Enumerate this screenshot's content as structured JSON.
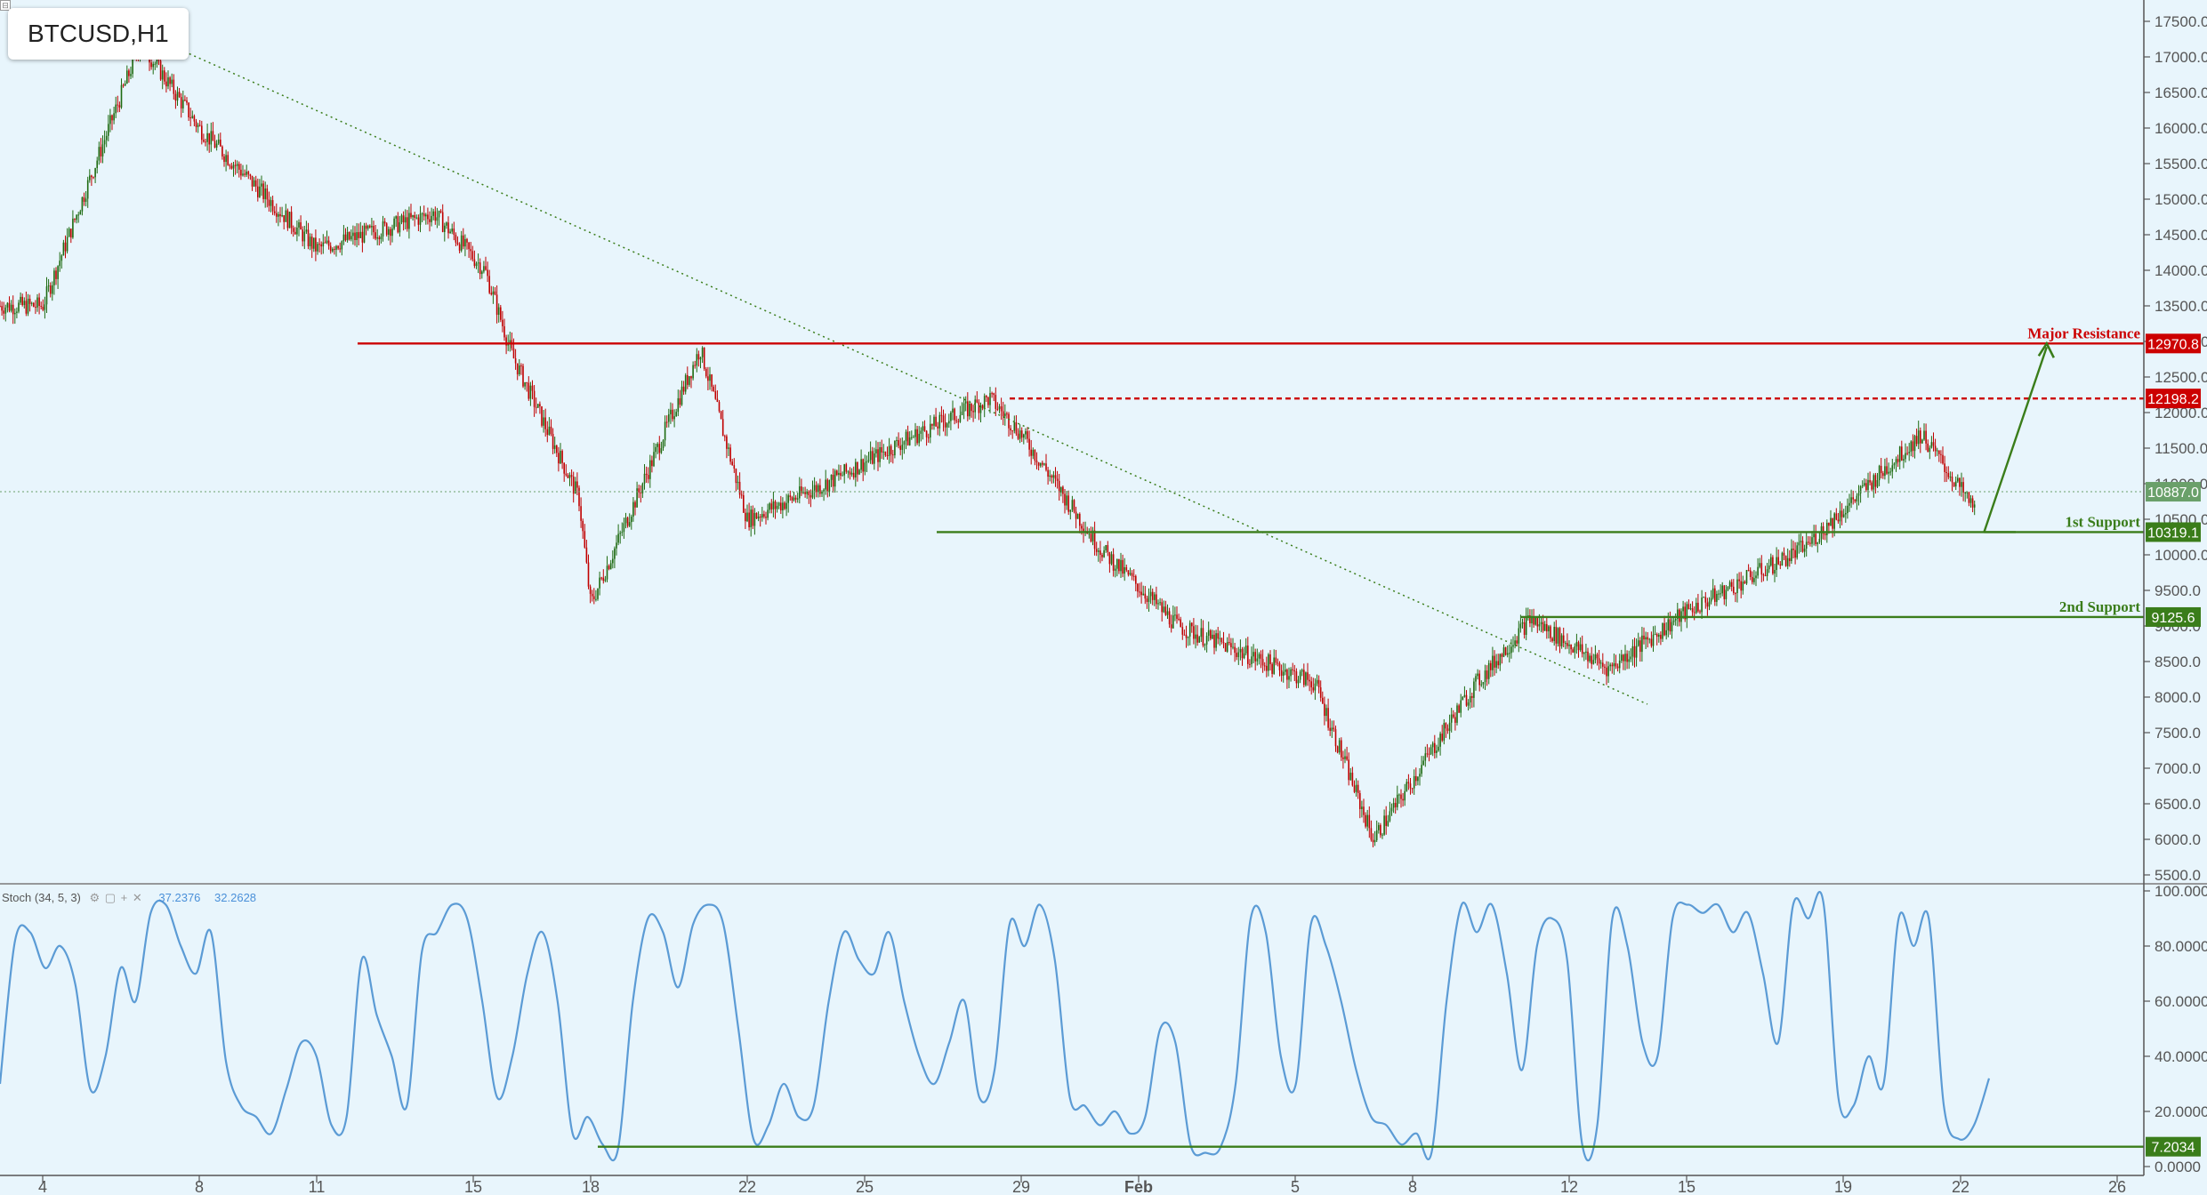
{
  "header": {
    "symbol": "BTCUSD,H1"
  },
  "stoch_legend": {
    "label": "Stoch (34, 5, 3)",
    "value_k": "37.2376",
    "value_d": "32.2628",
    "buttons": [
      "gear-icon",
      "square-icon",
      "plus-icon",
      "close-icon"
    ]
  },
  "annotations": {
    "major_resistance_label": "Major Resistance",
    "first_support_label": "1st Support",
    "second_support_label": "2nd Support"
  },
  "colors": {
    "background": "#e8f5fc",
    "resistance": "#cc0000",
    "support": "#3a7d1a",
    "trendline": "#3a7d1a",
    "candle_up": "#1e6b12",
    "candle_down": "#c00000",
    "stoch_line": "#5b9bd5",
    "current_price": "#6aa06a",
    "axis_text": "#555555"
  },
  "chart_data": [
    {
      "type": "candlestick",
      "title": "BTCUSD,H1",
      "price_axis": {
        "ticks": [
          "17500.0",
          "17000.0",
          "16500.0",
          "16000.0",
          "15500.0",
          "15000.0",
          "14500.0",
          "14000.0",
          "13500.0",
          "13000.0",
          "12500.0",
          "12000.0",
          "11500.0",
          "11000.0",
          "10500.0",
          "10000.0",
          "9500.0",
          "9000.0",
          "8500.0",
          "8000.0",
          "7500.0",
          "7000.0",
          "6500.0",
          "6000.0",
          "5500.0"
        ],
        "ylim": [
          5500,
          17500
        ]
      },
      "x_axis": {
        "ticks": [
          "4",
          "8",
          "11",
          "15",
          "18",
          "22",
          "25",
          "29",
          "Feb",
          "5",
          "8",
          "12",
          "15",
          "19",
          "22",
          "26"
        ],
        "bold_ticks": [
          "Feb"
        ]
      },
      "key_path_dates": [
        "4",
        "6.5",
        "8",
        "11",
        "14",
        "15.3",
        "16",
        "17.7",
        "18",
        "20.8",
        "22",
        "24",
        "26",
        "28.2",
        "29",
        "31",
        "Feb 2",
        "Feb 5.5",
        "Feb 7",
        "Feb 9.5",
        "Feb 11",
        "Feb 13",
        "Feb 15",
        "Feb 18",
        "Feb 21",
        "Feb 22.4"
      ],
      "key_path_prices": [
        13500,
        17200,
        16000,
        14300,
        14800,
        14000,
        12800,
        10800,
        9300,
        12900,
        10500,
        11000,
        11600,
        12200,
        11700,
        10100,
        9000,
        8200,
        6000,
        8100,
        9100,
        8400,
        9200,
        10100,
        11700,
        10600
      ],
      "levels": [
        {
          "name": "Major Resistance",
          "price": 12970.8,
          "label": "12970.8",
          "style": "solid",
          "color": "#cc0000"
        },
        {
          "name": "",
          "price": 12198.2,
          "label": "12198.2",
          "style": "dashed",
          "color": "#cc0000"
        },
        {
          "name": "current price",
          "price": 10887.0,
          "label": "10887.0",
          "style": "dotted",
          "color": "#6aa06a"
        },
        {
          "name": "1st Support",
          "price": 10319.1,
          "label": "10319.1",
          "style": "solid",
          "color": "#3a7d1a"
        },
        {
          "name": "2nd Support",
          "price": 9125.6,
          "label": "9125.6",
          "style": "solid",
          "color": "#3a7d1a"
        }
      ],
      "trendline": {
        "style": "dotted",
        "from": {
          "date": "6.5",
          "price": 17350
        },
        "to": {
          "date": "Feb 14",
          "price": 7900
        }
      },
      "projection_arrow": {
        "from": {
          "date": "Feb 22.6",
          "price": 10319.1
        },
        "to": {
          "date": "Feb 24.2",
          "price": 12970.8
        }
      }
    },
    {
      "type": "line",
      "title": "Stoch (34, 5, 3)",
      "y_axis": {
        "ticks": [
          "100.0000",
          "80.0000",
          "60.0000",
          "40.0000",
          "20.0000",
          "0.0000"
        ],
        "ylim": [
          0,
          100
        ]
      },
      "series": [
        {
          "name": "Stoch (34, 5, 3)",
          "values": [
            30,
            82,
            85,
            72,
            80,
            66,
            28,
            40,
            72,
            60,
            92,
            95,
            80,
            70,
            85,
            38,
            22,
            18,
            12,
            28,
            45,
            40,
            15,
            18,
            75,
            55,
            40,
            22,
            78,
            85,
            95,
            90,
            60,
            25,
            40,
            70,
            85,
            60,
            12,
            18,
            8,
            6,
            60,
            90,
            85,
            65,
            88,
            95,
            88,
            50,
            10,
            15,
            30,
            18,
            22,
            60,
            85,
            75,
            70,
            85,
            60,
            40,
            30,
            45,
            60,
            25,
            35,
            88,
            80,
            95,
            75,
            25,
            22,
            15,
            20,
            12,
            18,
            50,
            45,
            8,
            5,
            7,
            30,
            90,
            85,
            40,
            30,
            88,
            80,
            60,
            35,
            18,
            15,
            8,
            12,
            5,
            60,
            95,
            85,
            95,
            70,
            35,
            80,
            90,
            75,
            8,
            15,
            90,
            80,
            45,
            40,
            90,
            95,
            92,
            95,
            85,
            92,
            70,
            45,
            95,
            90,
            96,
            25,
            22,
            40,
            30,
            90,
            80,
            90,
            22,
            10,
            15,
            32
          ]
        }
      ],
      "levels": [
        {
          "value": 7.2034,
          "label": "7.2034",
          "color": "#3a7d1a"
        }
      ]
    }
  ]
}
